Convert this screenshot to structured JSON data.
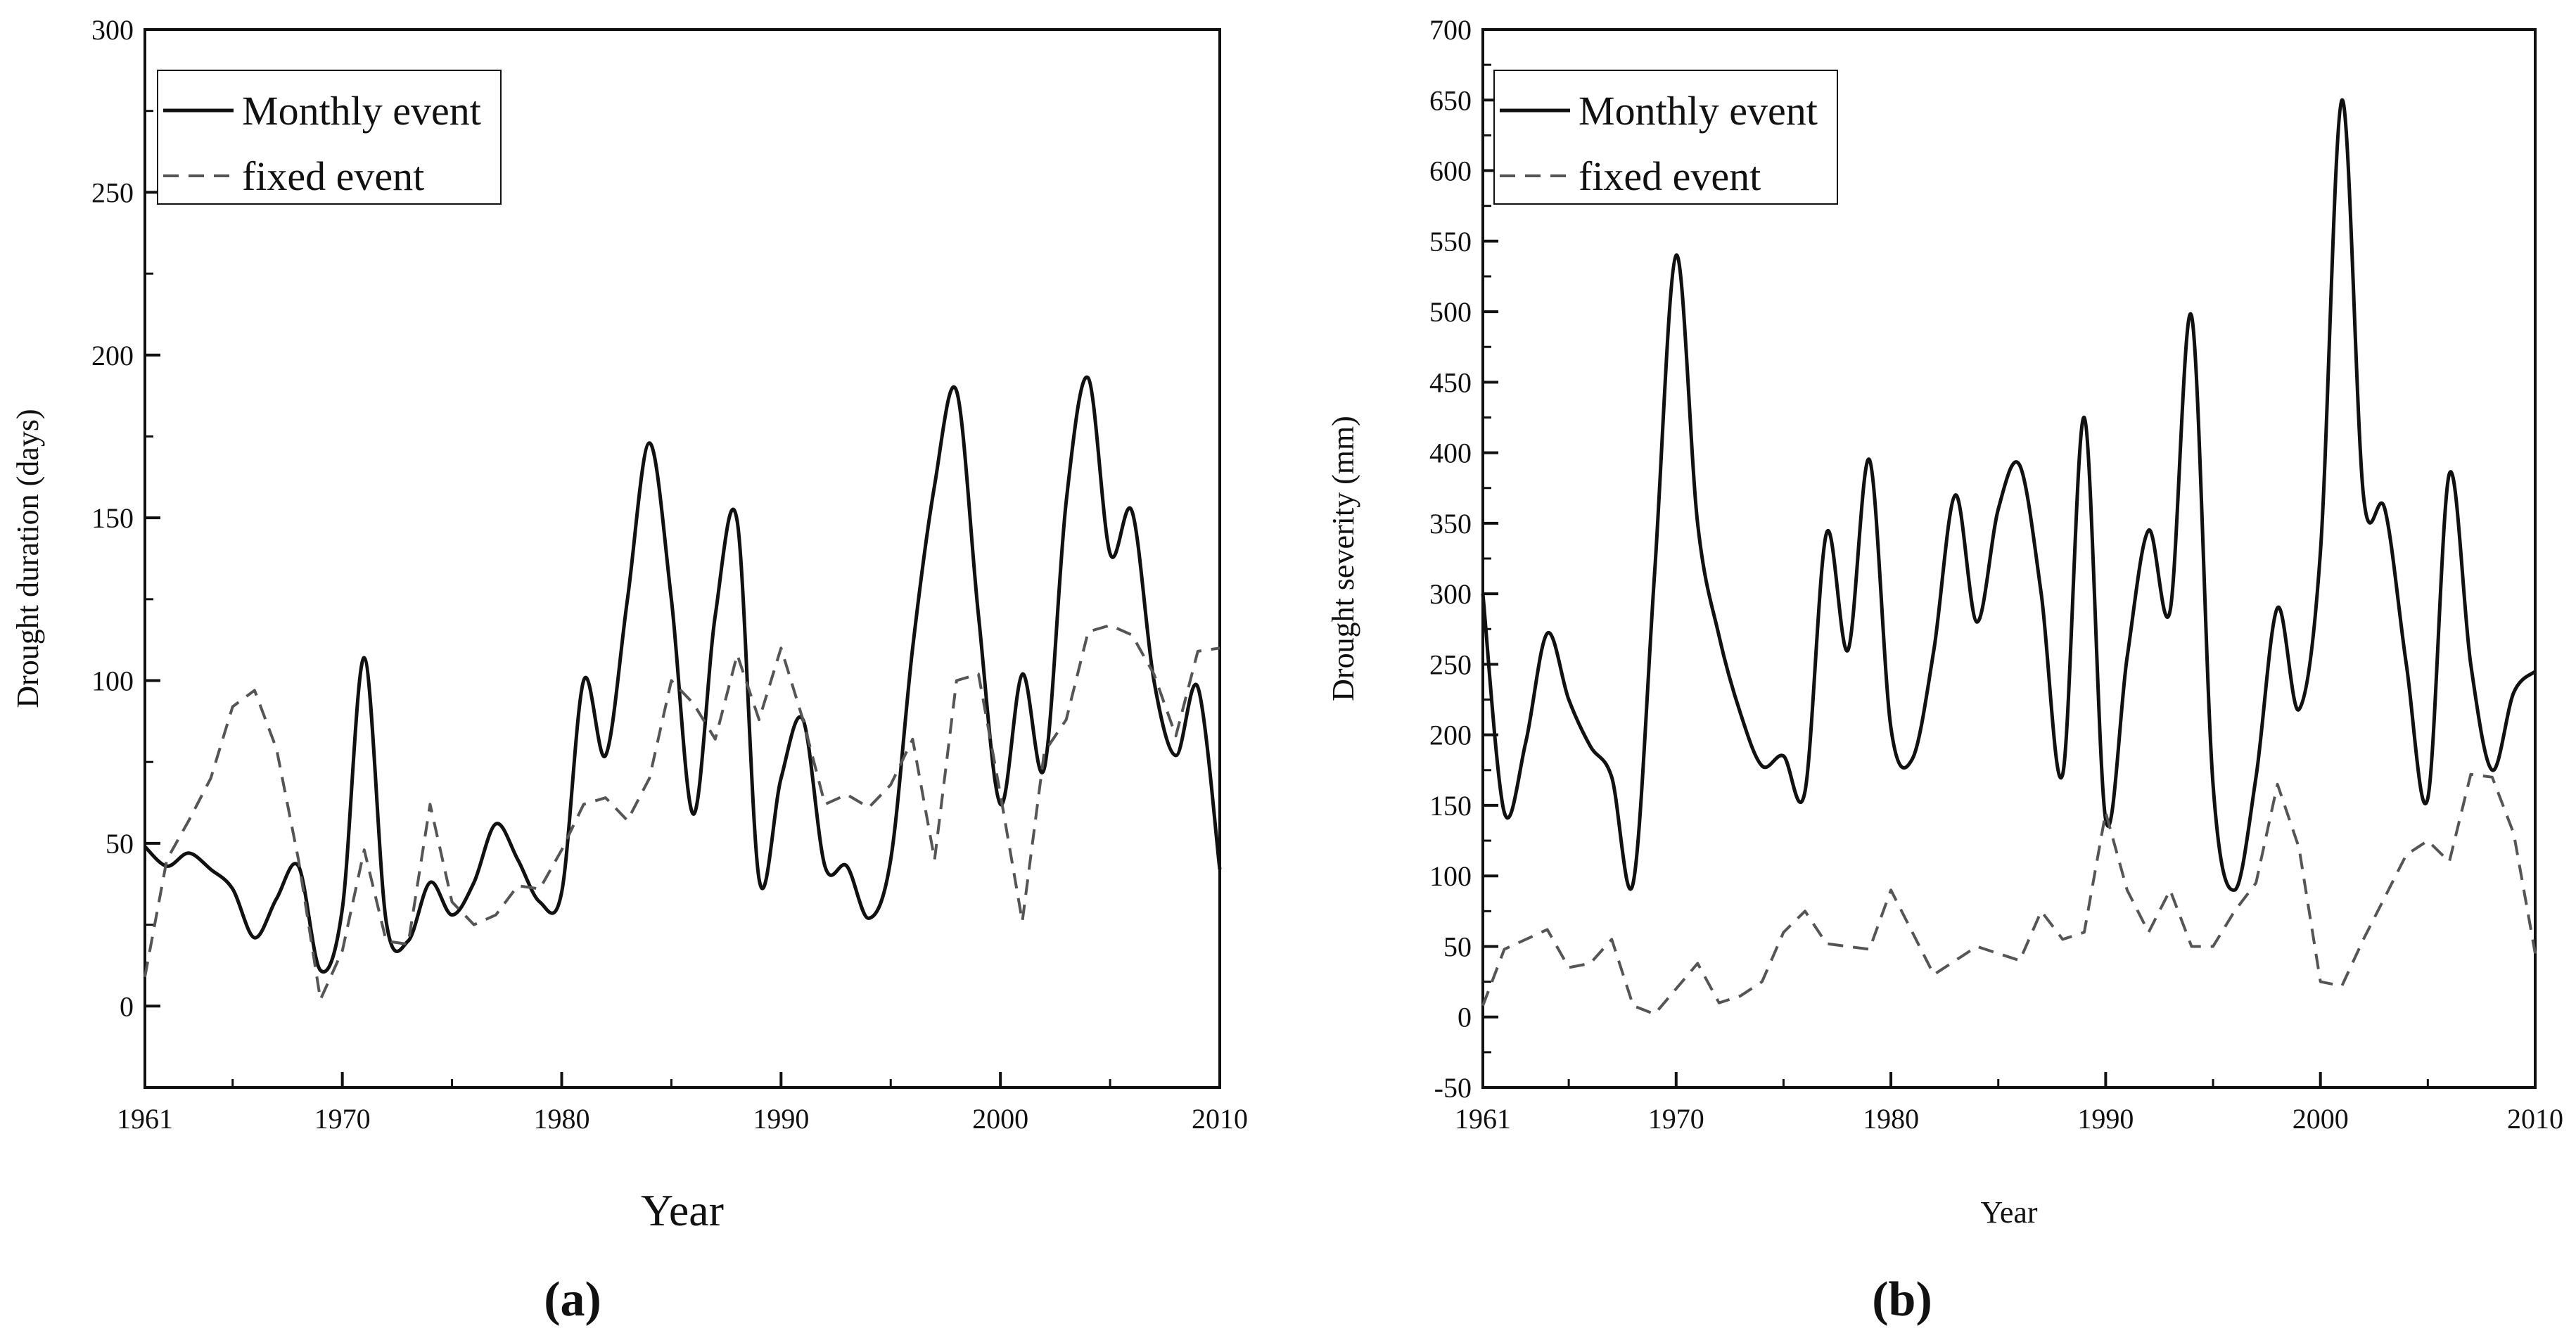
{
  "chart_data": [
    {
      "type": "line",
      "panel_label": "(a)",
      "xlabel": "Year",
      "ylabel": "Drought duration (days)",
      "xlim": [
        1961,
        2010
      ],
      "ylim": [
        -25,
        300
      ],
      "x_ticks": [
        1961,
        1970,
        1980,
        1990,
        2000,
        2010
      ],
      "y_ticks": [
        0,
        50,
        100,
        150,
        200,
        250,
        300
      ],
      "grid": false,
      "legend_position": "top-left",
      "series": [
        {
          "name": "Monthly event",
          "style": "solid",
          "color": "#111111",
          "x": [
            1961,
            1962,
            1963,
            1964,
            1965,
            1966,
            1967,
            1968,
            1969,
            1970,
            1971,
            1972,
            1973,
            1974,
            1975,
            1976,
            1977,
            1978,
            1979,
            1980,
            1981,
            1982,
            1983,
            1984,
            1985,
            1986,
            1987,
            1988,
            1989,
            1990,
            1991,
            1992,
            1993,
            1994,
            1995,
            1996,
            1997,
            1998,
            1999,
            2000,
            2001,
            2002,
            2003,
            2004,
            2005,
            2006,
            2007,
            2008,
            2009,
            2010
          ],
          "y": [
            49,
            43,
            47,
            42,
            36,
            21,
            33,
            43,
            11,
            30,
            107,
            26,
            20,
            38,
            28,
            38,
            56,
            45,
            32,
            35,
            100,
            77,
            125,
            173,
            125,
            59,
            120,
            149,
            39,
            70,
            88,
            43,
            43,
            27,
            45,
            110,
            160,
            189,
            120,
            62,
            102,
            73,
            155,
            193,
            139,
            152,
            100,
            77,
            98,
            42
          ]
        },
        {
          "name": "fixed event",
          "style": "dashed",
          "color": "#555555",
          "x": [
            1961,
            1962,
            1963,
            1964,
            1965,
            1966,
            1967,
            1968,
            1969,
            1970,
            1971,
            1972,
            1973,
            1974,
            1975,
            1976,
            1977,
            1978,
            1979,
            1980,
            1981,
            1982,
            1983,
            1984,
            1985,
            1986,
            1987,
            1988,
            1989,
            1990,
            1991,
            1992,
            1993,
            1994,
            1995,
            1996,
            1997,
            1998,
            1999,
            2000,
            2001,
            2002,
            2003,
            2004,
            2005,
            2006,
            2007,
            2008,
            2009,
            2010
          ],
          "y": [
            9,
            45,
            57,
            70,
            92,
            97,
            79,
            45,
            2,
            17,
            48,
            20,
            19,
            62,
            32,
            25,
            28,
            37,
            36,
            48,
            62,
            64,
            57,
            70,
            100,
            93,
            82,
            108,
            88,
            110,
            88,
            62,
            65,
            61,
            68,
            82,
            45,
            100,
            102,
            65,
            26,
            78,
            88,
            115,
            117,
            114,
            102,
            83,
            109,
            110
          ]
        }
      ]
    },
    {
      "type": "line",
      "panel_label": "(b)",
      "xlabel": "Year",
      "ylabel": "Drought severity (mm)",
      "xlim": [
        1961,
        2010
      ],
      "ylim": [
        -50,
        700
      ],
      "x_ticks": [
        1961,
        1970,
        1980,
        1990,
        2000,
        2010
      ],
      "y_ticks": [
        -50,
        0,
        50,
        100,
        150,
        200,
        250,
        300,
        350,
        400,
        450,
        500,
        550,
        600,
        650,
        700
      ],
      "grid": false,
      "legend_position": "top-left",
      "series": [
        {
          "name": "Monthly event",
          "style": "solid",
          "color": "#111111",
          "x": [
            1961,
            1962,
            1963,
            1964,
            1965,
            1966,
            1967,
            1968,
            1969,
            1970,
            1971,
            1972,
            1973,
            1974,
            1975,
            1976,
            1977,
            1978,
            1979,
            1980,
            1981,
            1982,
            1983,
            1984,
            1985,
            1986,
            1987,
            1988,
            1989,
            1990,
            1991,
            1992,
            1993,
            1994,
            1995,
            1996,
            1997,
            1998,
            1999,
            2000,
            2001,
            2002,
            2003,
            2004,
            2005,
            2006,
            2007,
            2008,
            2009,
            2010
          ],
          "y": [
            300,
            145,
            195,
            272,
            225,
            192,
            170,
            95,
            315,
            540,
            350,
            270,
            215,
            178,
            185,
            160,
            343,
            260,
            395,
            205,
            183,
            260,
            370,
            280,
            360,
            391,
            300,
            172,
            425,
            140,
            255,
            345,
            288,
            497,
            165,
            90,
            170,
            290,
            218,
            330,
            650,
            370,
            360,
            250,
            155,
            385,
            250,
            175,
            230,
            245
          ]
        },
        {
          "name": "fixed event",
          "style": "dashed",
          "color": "#555555",
          "x": [
            1961,
            1962,
            1963,
            1964,
            1965,
            1966,
            1967,
            1968,
            1969,
            1970,
            1971,
            1972,
            1973,
            1974,
            1975,
            1976,
            1977,
            1978,
            1979,
            1980,
            1981,
            1982,
            1983,
            1984,
            1985,
            1986,
            1987,
            1988,
            1989,
            1990,
            1991,
            1992,
            1993,
            1994,
            1995,
            1996,
            1997,
            1998,
            1999,
            2000,
            2001,
            2002,
            2003,
            2004,
            2005,
            2006,
            2007,
            2008,
            2009,
            2010
          ],
          "y": [
            8,
            48,
            55,
            62,
            35,
            38,
            55,
            8,
            2,
            20,
            38,
            10,
            15,
            25,
            60,
            75,
            52,
            50,
            48,
            90,
            60,
            30,
            40,
            50,
            45,
            40,
            75,
            55,
            60,
            145,
            90,
            60,
            90,
            50,
            50,
            75,
            95,
            165,
            120,
            25,
            22,
            55,
            85,
            115,
            125,
            110,
            172,
            170,
            130,
            45
          ]
        }
      ]
    }
  ]
}
